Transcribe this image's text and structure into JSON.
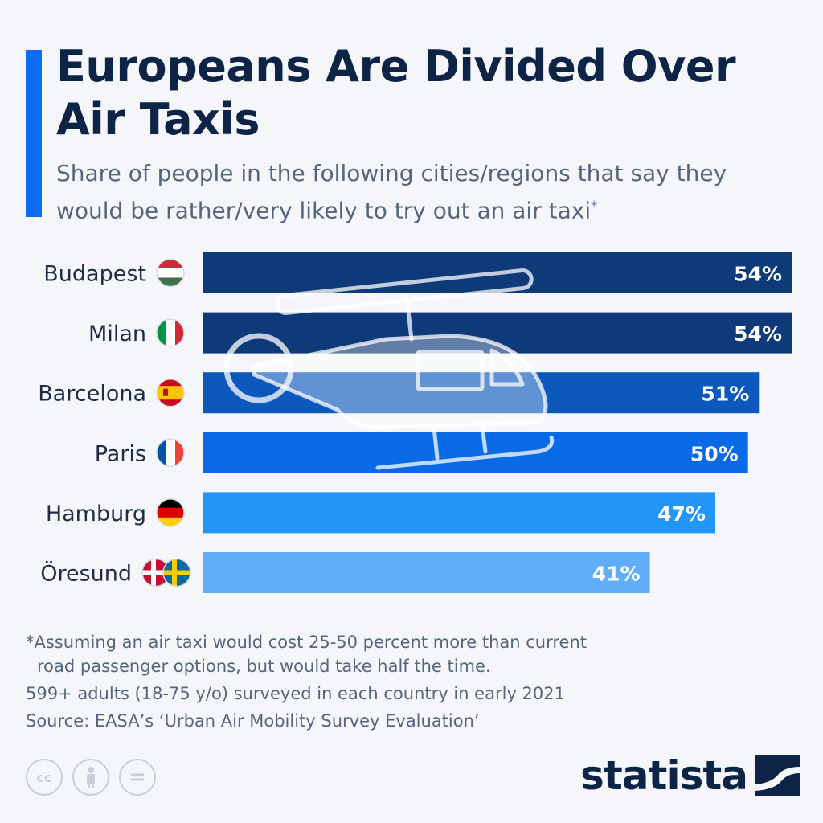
{
  "title": "Europeans Are Divided Over Air Taxis",
  "subtitle": "Share of people in the following cities/regions that say they would be rather/very likely to try out an air taxi",
  "subtitle_mark": "*",
  "chart_data": {
    "type": "bar",
    "orientation": "horizontal",
    "categories": [
      "Budapest",
      "Milan",
      "Barcelona",
      "Paris",
      "Hamburg",
      "Öresund"
    ],
    "values": [
      54,
      54,
      51,
      50,
      47,
      41
    ],
    "value_labels": [
      "54%",
      "54%",
      "51%",
      "50%",
      "47%",
      "41%"
    ],
    "xlim": [
      0,
      54
    ],
    "bar_colors": [
      "#0f3a7a",
      "#0f3a7a",
      "#0d58bd",
      "#0a6ae6",
      "#2196f6",
      "#62adf7"
    ],
    "flags": [
      [
        "hungary-flag-icon"
      ],
      [
        "italy-flag-icon"
      ],
      [
        "spain-flag-icon"
      ],
      [
        "france-flag-icon"
      ],
      [
        "germany-flag-icon"
      ],
      [
        "denmark-flag-icon",
        "sweden-flag-icon"
      ]
    ],
    "grid": false,
    "legend": "none"
  },
  "footnote": {
    "line1": "*Assuming an air taxi would cost 25-50 percent more than current",
    "line2": "road passenger options, but would take half the time.",
    "line3": "599+ adults (18-75 y/o) surveyed in each country in early 2021",
    "source": "Source: EASA’s ‘Urban Air Mobility Survey Evaluation’"
  },
  "license": {
    "cc": "cc",
    "eq": "="
  },
  "brand": "statista",
  "colors": {
    "accent": "#0a6cf0",
    "title": "#0e2446",
    "text": "#55657c",
    "background": "#f4f6f9"
  }
}
